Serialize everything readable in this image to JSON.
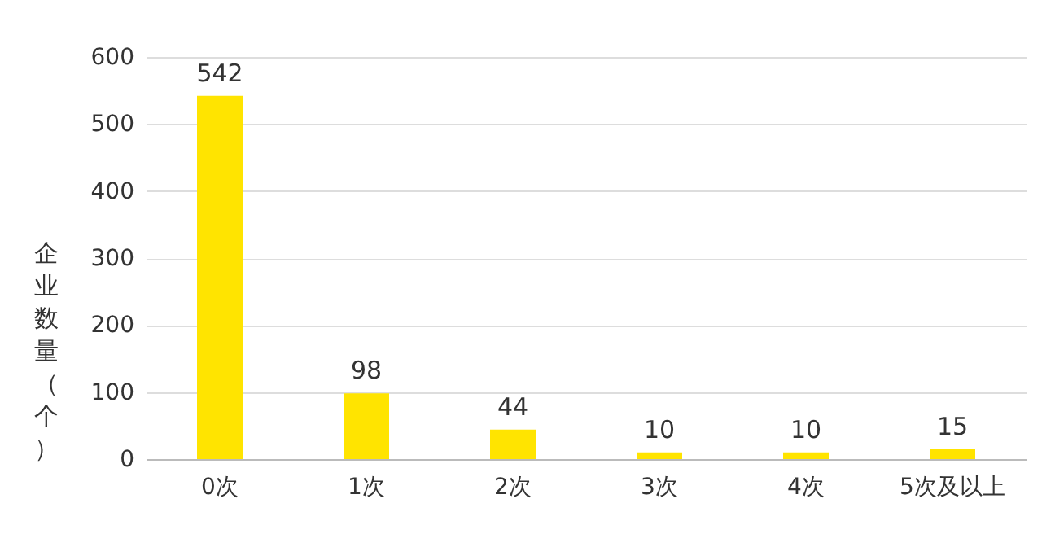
{
  "chart_data": {
    "type": "bar",
    "ylabel": "企业数量（个）",
    "categories": [
      "0次",
      "1次",
      "2次",
      "3次",
      "4次",
      "5次及以上"
    ],
    "values": [
      542,
      98,
      44,
      10,
      10,
      15
    ],
    "color": "#ffe400",
    "ylim": [
      0,
      600
    ],
    "yticks": [
      0,
      100,
      200,
      300,
      400,
      500,
      600
    ],
    "grid": "y",
    "data_labels": true
  }
}
